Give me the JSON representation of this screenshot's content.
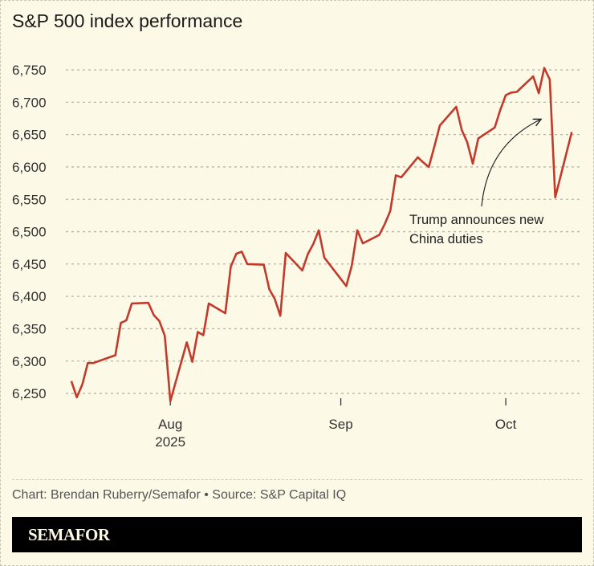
{
  "title": "S&P 500 index performance",
  "credit": "Chart: Brendan Ruberry/Semafor • Source: S&P Capital IQ",
  "brand": "SEMAFOR",
  "chart_data": {
    "type": "line",
    "title": "S&P 500 index performance",
    "xlabel": "",
    "ylabel": "",
    "xlim": [
      "2025-07-13",
      "2025-10-15"
    ],
    "ylim": [
      6225,
      6775
    ],
    "grid": true,
    "line_color": "#c23a2b",
    "y_ticks": [
      6250,
      6300,
      6350,
      6400,
      6450,
      6500,
      6550,
      6600,
      6650,
      6700,
      6750
    ],
    "y_tick_labels": [
      "6,250",
      "6,300",
      "6,350",
      "6,400",
      "6,450",
      "6,500",
      "6,550",
      "6,600",
      "6,650",
      "6,700",
      "6,750"
    ],
    "x_ticks": [
      {
        "date": "2025-08-01",
        "label": "Aug",
        "sublabel": "2025"
      },
      {
        "date": "2025-09-01",
        "label": "Sep",
        "sublabel": ""
      },
      {
        "date": "2025-10-01",
        "label": "Oct",
        "sublabel": ""
      }
    ],
    "annotation": {
      "lines": [
        "Trump announces new",
        "China duties"
      ],
      "points_to": "2025-10-10"
    },
    "x": [
      "2025-07-14",
      "2025-07-15",
      "2025-07-16",
      "2025-07-17",
      "2025-07-18",
      "2025-07-21",
      "2025-07-22",
      "2025-07-23",
      "2025-07-24",
      "2025-07-25",
      "2025-07-28",
      "2025-07-29",
      "2025-07-30",
      "2025-07-31",
      "2025-08-01",
      "2025-08-04",
      "2025-08-05",
      "2025-08-06",
      "2025-08-07",
      "2025-08-08",
      "2025-08-11",
      "2025-08-12",
      "2025-08-13",
      "2025-08-14",
      "2025-08-15",
      "2025-08-18",
      "2025-08-19",
      "2025-08-20",
      "2025-08-21",
      "2025-08-22",
      "2025-08-25",
      "2025-08-26",
      "2025-08-27",
      "2025-08-28",
      "2025-08-29",
      "2025-09-02",
      "2025-09-03",
      "2025-09-04",
      "2025-09-05",
      "2025-09-08",
      "2025-09-09",
      "2025-09-10",
      "2025-09-11",
      "2025-09-12",
      "2025-09-15",
      "2025-09-16",
      "2025-09-17",
      "2025-09-18",
      "2025-09-19",
      "2025-09-22",
      "2025-09-23",
      "2025-09-24",
      "2025-09-25",
      "2025-09-26",
      "2025-09-29",
      "2025-09-30",
      "2025-10-01",
      "2025-10-02",
      "2025-10-03",
      "2025-10-06",
      "2025-10-07",
      "2025-10-08",
      "2025-10-09",
      "2025-10-10",
      "2025-10-13"
    ],
    "values": [
      6269,
      6244,
      6264,
      6297,
      6297,
      6306,
      6309,
      6359,
      6363,
      6389,
      6390,
      6371,
      6362,
      6339,
      6238,
      6329,
      6299,
      6345,
      6340,
      6389,
      6374,
      6446,
      6466,
      6469,
      6450,
      6449,
      6411,
      6396,
      6370,
      6467,
      6440,
      6465,
      6481,
      6502,
      6460,
      6416,
      6448,
      6502,
      6482,
      6495,
      6512,
      6532,
      6587,
      6584,
      6615,
      6607,
      6600,
      6631,
      6664,
      6693,
      6657,
      6638,
      6605,
      6644,
      6661,
      6688,
      6711,
      6715,
      6716,
      6740,
      6714,
      6753,
      6735,
      6553,
      6654
    ]
  }
}
